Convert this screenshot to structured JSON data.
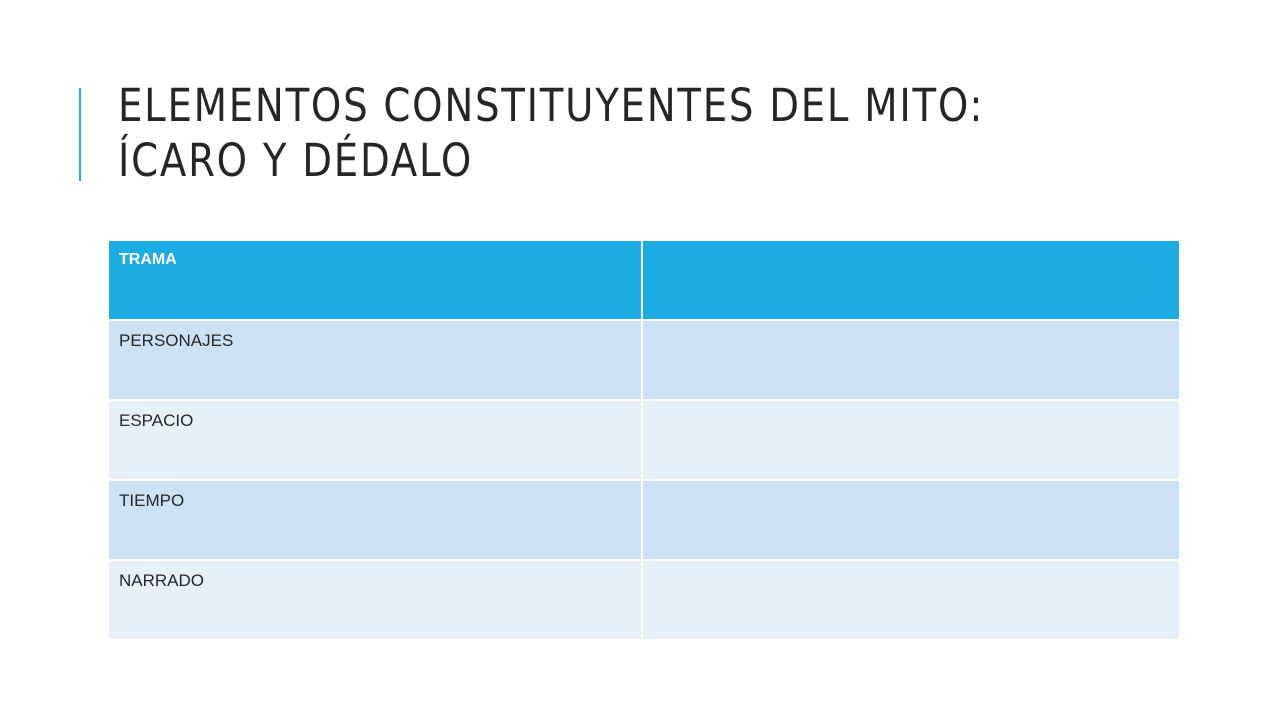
{
  "slide": {
    "title_line1": "ELEMENTOS CONSTITUYENTES DEL MITO:",
    "title_line2": "ÍCARO Y DÉDALO"
  },
  "table": {
    "header": {
      "label": "TRAMA",
      "value": ""
    },
    "rows": [
      {
        "label": "PERSONAJES",
        "value": ""
      },
      {
        "label": "ESPACIO",
        "value": ""
      },
      {
        "label": "TIEMPO",
        "value": ""
      },
      {
        "label": "NARRADO",
        "value": ""
      }
    ]
  },
  "colors": {
    "accent": "#1CADE4",
    "band_dark": "#CBE1F4",
    "band_light": "#E6F0F9",
    "title_text": "#262626"
  }
}
